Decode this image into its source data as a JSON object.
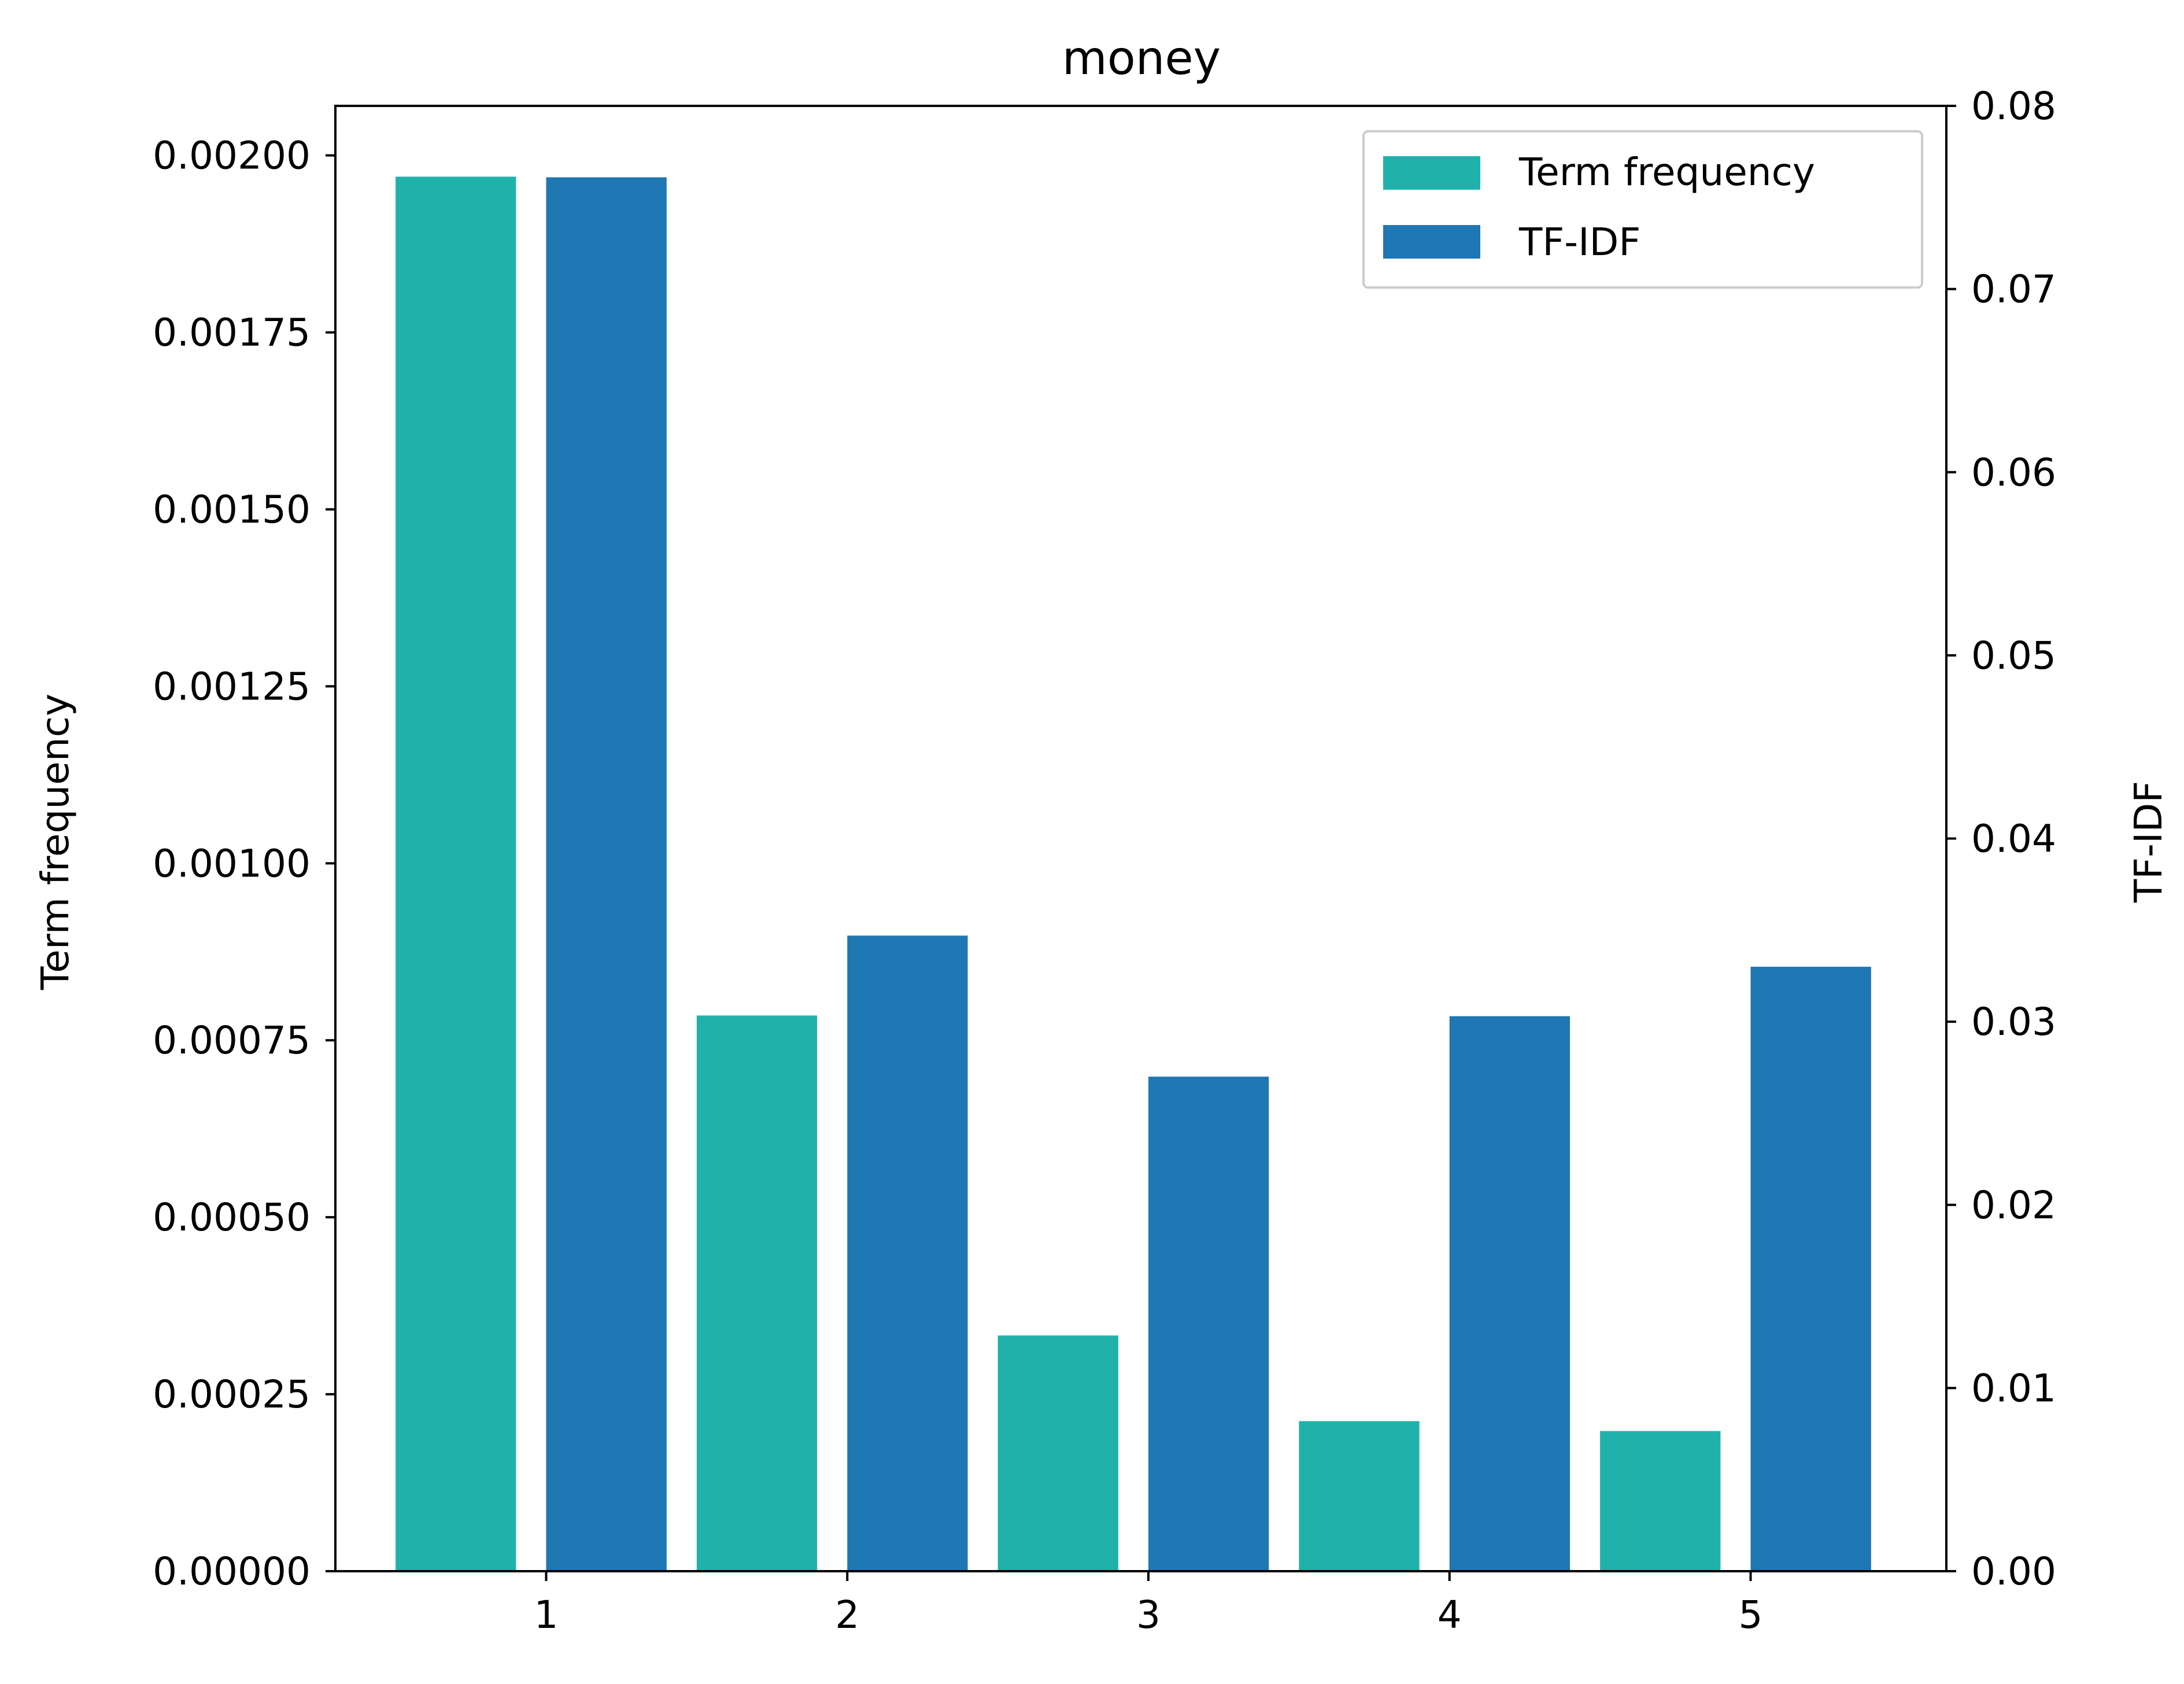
{
  "chart_data": {
    "type": "bar",
    "title": "money",
    "xlabel": "",
    "ylabel_left": "Term frequency",
    "ylabel_right": "TF-IDF",
    "x": [
      1,
      2,
      3,
      4,
      5
    ],
    "x_tick_labels": [
      "1",
      "2",
      "3",
      "4",
      "5"
    ],
    "xlim": [
      0.3,
      5.65
    ],
    "ylim_left": [
      0,
      0.00207
    ],
    "ylim_right": [
      0,
      0.08
    ],
    "yticks_left": [
      "0.00000",
      "0.00025",
      "0.00050",
      "0.00075",
      "0.00100",
      "0.00125",
      "0.00150",
      "0.00175",
      "0.00200"
    ],
    "yticks_left_values": [
      0,
      0.00025,
      0.0005,
      0.00075,
      0.001,
      0.00125,
      0.0015,
      0.00175,
      0.002
    ],
    "yticks_right": [
      "0.00",
      "0.01",
      "0.02",
      "0.03",
      "0.04",
      "0.05",
      "0.06",
      "0.07",
      "0.08"
    ],
    "yticks_right_values": [
      0,
      0.01,
      0.02,
      0.03,
      0.04,
      0.05,
      0.06,
      0.07,
      0.08
    ],
    "bar_width": 0.4,
    "series": [
      {
        "name": "Term frequency",
        "axis": "left",
        "offset": -0.3,
        "color": "#20b2aa",
        "values": [
          0.00197,
          0.000785,
          0.000333,
          0.000212,
          0.000198
        ]
      },
      {
        "name": "TF-IDF",
        "axis": "right",
        "offset": 0.2,
        "color": "#1f77b4",
        "values": [
          0.0761,
          0.0347,
          0.027,
          0.0303,
          0.033
        ]
      }
    ],
    "legend": {
      "position": "top-right",
      "entries": [
        "Term frequency",
        "TF-IDF"
      ]
    },
    "grid": false
  }
}
